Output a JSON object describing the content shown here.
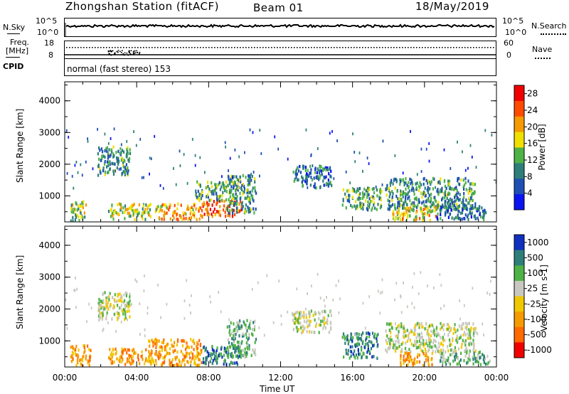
{
  "header": {
    "station": "Zhongshan Station (fitACF)",
    "beam": "Beam 01",
    "date": "18/May/2019"
  },
  "top_panels": {
    "nsky_label": "N.Sky",
    "nsky_ticks": [
      "10^5",
      "10^0"
    ],
    "nsearch_label": "N.Search",
    "nsearch_ticks": [
      "10^5",
      "10^0"
    ],
    "freq_label_line1": "Freq.",
    "freq_label_line2": "[MHz]",
    "freq_ticks": [
      "18",
      "8"
    ],
    "nave_label": "Nave",
    "nave_ticks": [
      "60",
      "0"
    ],
    "cpid_label": "CPID",
    "cpid_text": "normal (fast stereo) 153"
  },
  "chart_data": [
    {
      "type": "heatmap",
      "panel": "power",
      "xlabel": "",
      "ylabel": "Slant Range [km]",
      "x_ticks": [
        "00:00",
        "04:00",
        "08:00",
        "12:00",
        "16:00",
        "20:00",
        "00:00"
      ],
      "x_hours": [
        0,
        4,
        8,
        12,
        16,
        20,
        24
      ],
      "y_ticks": [
        1000,
        2000,
        3000,
        4000
      ],
      "ylim": [
        180,
        4600
      ],
      "colorbar_label": "Power [dB]",
      "colorbar_ticks": [
        "4",
        "8",
        "12",
        "16",
        "20",
        "24",
        "28"
      ],
      "colorbar_range": [
        0,
        30
      ],
      "colors": [
        "#0a14f0",
        "#1e4fb4",
        "#2e7f7a",
        "#4fb247",
        "#f0e000",
        "#f59a00",
        "#ff4a00",
        "#f00000"
      ],
      "patches": [
        {
          "t0": 1.8,
          "t1": 3.6,
          "r0": 1700,
          "r1": 2600,
          "level": 10
        },
        {
          "t0": 0.3,
          "t1": 1.2,
          "r0": 250,
          "r1": 900,
          "level": 14
        },
        {
          "t0": 2.4,
          "t1": 4.8,
          "r0": 300,
          "r1": 800,
          "level": 16
        },
        {
          "t0": 5.0,
          "t1": 7.6,
          "r0": 300,
          "r1": 800,
          "level": 20
        },
        {
          "t0": 7.6,
          "t1": 9.8,
          "r0": 400,
          "r1": 900,
          "level": 24
        },
        {
          "t0": 7.2,
          "t1": 9.6,
          "r0": 900,
          "r1": 1500,
          "level": 12
        },
        {
          "t0": 9.0,
          "t1": 10.6,
          "r0": 500,
          "r1": 1700,
          "level": 10
        },
        {
          "t0": 12.6,
          "t1": 14.8,
          "r0": 1300,
          "r1": 2000,
          "level": 8
        },
        {
          "t0": 15.4,
          "t1": 17.6,
          "r0": 600,
          "r1": 1300,
          "level": 12
        },
        {
          "t0": 17.8,
          "t1": 22.8,
          "r0": 600,
          "r1": 1600,
          "level": 10
        },
        {
          "t0": 18.2,
          "t1": 20.6,
          "r0": 250,
          "r1": 700,
          "level": 18
        },
        {
          "t0": 20.6,
          "t1": 23.4,
          "r0": 300,
          "r1": 800,
          "level": 8
        }
      ]
    },
    {
      "type": "heatmap",
      "panel": "velocity",
      "xlabel": "Time UT",
      "ylabel": "Slant Range [km]",
      "x_ticks": [
        "00:00",
        "04:00",
        "08:00",
        "12:00",
        "16:00",
        "20:00",
        "00:00"
      ],
      "x_hours": [
        0,
        4,
        8,
        12,
        16,
        20,
        24
      ],
      "y_ticks": [
        1000,
        2000,
        3000,
        4000
      ],
      "ylim": [
        180,
        4600
      ],
      "colorbar_label": "Velocity [m s-1]",
      "colorbar_ticks": [
        "1000",
        "500",
        "100",
        "25",
        "-25",
        "-100",
        "-500",
        "-1000"
      ],
      "colors": [
        "#1030c0",
        "#2e7f7a",
        "#4fb247",
        "#c8c8c0",
        "#f0c800",
        "#f59a00",
        "#ff6a00",
        "#f00000"
      ],
      "patches": [
        {
          "t0": 1.8,
          "t1": 3.6,
          "r0": 1700,
          "r1": 2600,
          "level": 3
        },
        {
          "t0": 0.3,
          "t1": 1.4,
          "r0": 250,
          "r1": 900,
          "level": 5
        },
        {
          "t0": 2.4,
          "t1": 4.8,
          "r0": 300,
          "r1": 800,
          "level": 5
        },
        {
          "t0": 4.6,
          "t1": 7.6,
          "r0": 250,
          "r1": 1100,
          "level": 5
        },
        {
          "t0": 7.6,
          "t1": 9.8,
          "r0": 300,
          "r1": 900,
          "level": 1
        },
        {
          "t0": 9.0,
          "t1": 10.6,
          "r0": 500,
          "r1": 1700,
          "level": 2
        },
        {
          "t0": 12.6,
          "t1": 14.8,
          "r0": 1300,
          "r1": 2000,
          "level": 3
        },
        {
          "t0": 15.4,
          "t1": 17.4,
          "r0": 500,
          "r1": 1300,
          "level": 1
        },
        {
          "t0": 17.8,
          "t1": 22.8,
          "r0": 700,
          "r1": 1600,
          "level": 3
        },
        {
          "t0": 18.6,
          "t1": 20.4,
          "r0": 250,
          "r1": 700,
          "level": 5
        },
        {
          "t0": 20.8,
          "t1": 23.6,
          "r0": 300,
          "r1": 700,
          "level": 2
        }
      ]
    }
  ]
}
